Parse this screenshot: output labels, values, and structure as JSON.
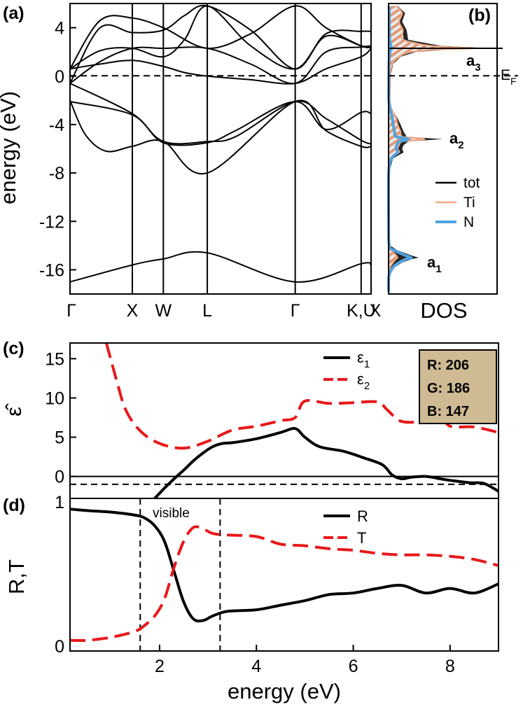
{
  "chart_data": [
    {
      "panel": "(a)",
      "type": "line",
      "title": "",
      "ylabel": "energy (eV)",
      "ylim": [
        -18,
        6
      ],
      "yticks": [
        4,
        0,
        -4,
        -8,
        -12,
        -16
      ],
      "k_path": [
        "Γ",
        "X",
        "W",
        "L",
        "Γ",
        "K,U",
        "X"
      ],
      "k_positions": [
        0,
        0.207,
        0.31,
        0.456,
        0.748,
        0.967,
        1.0
      ],
      "fermi_level": 0,
      "description_series": [
        {
          "name": "band1",
          "x": [
            0,
            0.207,
            0.31,
            0.456,
            0.748,
            0.967,
            1.0
          ],
          "y": [
            -17.0,
            -15.6,
            -15.1,
            -14.6,
            -17.0,
            -15.5,
            -15.6
          ]
        },
        {
          "name": "band2",
          "x": [
            0,
            0.05,
            0.12,
            0.207,
            0.31,
            0.456,
            0.748,
            0.85,
            0.967,
            1.0
          ],
          "y": [
            -2.0,
            -4.8,
            -6.2,
            -5.8,
            -5.4,
            -8.0,
            -2.1,
            -4.5,
            -5.8,
            -5.8
          ]
        },
        {
          "name": "band3",
          "x": [
            0,
            0.207,
            0.31,
            0.456,
            0.55,
            0.748,
            0.85,
            0.967,
            1.0
          ],
          "y": [
            -0.6,
            -3.1,
            -5.4,
            -5.4,
            -5.0,
            -2.1,
            -3.5,
            -5.3,
            -5.6
          ]
        },
        {
          "name": "band4",
          "x": [
            0,
            0.207,
            0.31,
            0.456,
            0.55,
            0.748,
            0.85,
            0.967,
            1.0
          ],
          "y": [
            -2.1,
            -3.2,
            -5.5,
            -5.5,
            -4.5,
            -2.1,
            -4.4,
            -3.0,
            -3.1
          ]
        },
        {
          "name": "band5",
          "x": [
            0,
            0.1,
            0.207,
            0.31,
            0.38,
            0.456,
            0.6,
            0.748,
            0.85,
            0.967,
            1.0
          ],
          "y": [
            0.6,
            1.0,
            1.3,
            0.8,
            0.3,
            0.0,
            -0.3,
            -0.6,
            0.6,
            1.6,
            2.3
          ]
        },
        {
          "name": "band6",
          "x": [
            0,
            0.1,
            0.207,
            0.31,
            0.456,
            0.6,
            0.748,
            0.85,
            0.967,
            1.0
          ],
          "y": [
            -0.6,
            1.2,
            2.3,
            2.3,
            2.3,
            1.0,
            -0.6,
            2.0,
            2.4,
            2.5
          ]
        },
        {
          "name": "band7",
          "x": [
            0,
            0.1,
            0.207,
            0.31,
            0.38,
            0.456,
            0.6,
            0.748,
            0.85,
            0.967,
            1.0
          ],
          "y": [
            0.6,
            2.1,
            2.3,
            1.6,
            3.0,
            5.8,
            2.5,
            0.6,
            3.3,
            2.5,
            2.4
          ]
        },
        {
          "name": "band8",
          "x": [
            0,
            0.1,
            0.207,
            0.31,
            0.38,
            0.456,
            0.6,
            0.748,
            0.85,
            0.967,
            1.0
          ],
          "y": [
            -0.6,
            4.0,
            3.6,
            3.8,
            5.0,
            5.8,
            3.8,
            0.6,
            3.5,
            3.7,
            3.7
          ]
        },
        {
          "name": "band9",
          "x": [
            0,
            0.1,
            0.207,
            0.31,
            0.456,
            0.6,
            0.748,
            0.85,
            0.967,
            1.0
          ],
          "y": [
            0.6,
            4.6,
            4.8,
            4.0,
            2.3,
            3.5,
            5.8,
            4.0,
            2.5,
            2.4
          ]
        }
      ]
    },
    {
      "panel": "(b)",
      "type": "area",
      "xlabel": "DOS",
      "ylim": [
        -18,
        6
      ],
      "fermi_label": "E",
      "fermi_sub": "F",
      "peak_labels": [
        {
          "text": "a",
          "sub": "3",
          "energy": 2.3
        },
        {
          "text": "a",
          "sub": "2",
          "energy": -5.2
        },
        {
          "text": "a",
          "sub": "1",
          "energy": -15.0
        }
      ],
      "legend": [
        "tot",
        "Ti",
        "N"
      ],
      "colors": {
        "tot": "#000000",
        "Ti": "#f4a882",
        "N": "#4fa3e0"
      },
      "energy": [
        -17.8,
        -16.5,
        -15.8,
        -15.4,
        -15.1,
        -15.0,
        -14.8,
        -14.4,
        -14.0,
        -12,
        -8,
        -6.8,
        -6.3,
        -6.0,
        -5.7,
        -5.4,
        -5.2,
        -5.0,
        -4.6,
        -4.0,
        -3.5,
        -3.0,
        -2.6,
        -2.0,
        -1.0,
        0.0,
        1.0,
        1.6,
        2.0,
        2.2,
        2.3,
        2.5,
        3.0,
        3.8,
        4.5,
        5.2,
        5.8
      ],
      "tot": [
        0.02,
        0.05,
        0.4,
        0.9,
        1.6,
        2.0,
        1.5,
        0.6,
        0.1,
        0.01,
        0.02,
        0.3,
        1.0,
        0.9,
        1.0,
        1.3,
        3.6,
        1.2,
        1.0,
        0.8,
        0.6,
        0.35,
        0.2,
        0.1,
        0.12,
        0.15,
        0.3,
        0.8,
        1.8,
        4.0,
        6.8,
        3.5,
        1.3,
        1.2,
        0.9,
        1.1,
        0.6
      ],
      "Ti": [
        0.01,
        0.02,
        0.1,
        0.3,
        0.5,
        0.6,
        0.5,
        0.2,
        0.05,
        0.01,
        0.01,
        0.2,
        0.7,
        0.6,
        0.7,
        0.9,
        2.4,
        0.9,
        0.8,
        0.6,
        0.5,
        0.3,
        0.15,
        0.08,
        0.1,
        0.12,
        0.25,
        0.7,
        1.5,
        3.2,
        5.5,
        2.8,
        1.0,
        0.95,
        0.7,
        0.9,
        0.5
      ],
      "N": [
        0.01,
        0.03,
        0.3,
        0.7,
        1.2,
        1.5,
        1.1,
        0.4,
        0.05,
        0.005,
        0.01,
        0.2,
        0.6,
        0.5,
        0.55,
        0.7,
        1.3,
        0.5,
        0.4,
        0.3,
        0.25,
        0.15,
        0.08,
        0.02,
        0.02,
        0.02,
        0.03,
        0.06,
        0.1,
        0.15,
        0.25,
        0.15,
        0.08,
        0.06,
        0.05,
        0.05,
        0.03
      ],
      "xmax": 7.2
    },
    {
      "panel": "(c)",
      "type": "line",
      "ylabel": "ε̂",
      "xlim": [
        0.15,
        9.0
      ],
      "ylim": [
        -2.8,
        17
      ],
      "yticks": [
        15,
        10,
        5,
        0
      ],
      "hline_solid": 0,
      "hline_dashed": -1,
      "color_box": [
        "R: 206",
        "G: 186",
        "B: 147"
      ],
      "color_box_hex": "#ceba93",
      "series": [
        {
          "name": "ε",
          "sub": "1",
          "style": "solid",
          "color": "#000000",
          "x": [
            1.9,
            2.1,
            2.3,
            2.5,
            2.7,
            2.9,
            3.1,
            3.3,
            3.5,
            4.0,
            4.5,
            4.8,
            5.0,
            5.3,
            5.8,
            6.2,
            6.6,
            6.8,
            7.0,
            7.2,
            7.5,
            7.8,
            8.0,
            8.4,
            8.7,
            9.0
          ],
          "y": [
            -2.8,
            -1.5,
            -0.3,
            0.8,
            2.0,
            3.0,
            3.8,
            4.2,
            4.3,
            4.8,
            5.6,
            6.1,
            5.0,
            3.8,
            3.2,
            2.4,
            1.5,
            0.2,
            -0.3,
            -0.1,
            0.0,
            -0.3,
            -0.5,
            -0.8,
            -0.9,
            -1.9
          ]
        },
        {
          "name": "ε",
          "sub": "2",
          "style": "dashed",
          "color": "#e8181a",
          "x": [
            0.9,
            1.1,
            1.3,
            1.6,
            2.0,
            2.5,
            3.0,
            3.5,
            4.0,
            4.5,
            4.8,
            5.0,
            5.5,
            6.0,
            6.5,
            6.7,
            7.0,
            7.5,
            7.8,
            8.0,
            8.5,
            9.0
          ],
          "y": [
            17,
            12.5,
            8.5,
            5.8,
            4.2,
            3.6,
            4.5,
            5.9,
            6.4,
            7.1,
            7.5,
            9.6,
            9.3,
            9.4,
            9.5,
            8.5,
            7.0,
            7.1,
            7.8,
            6.4,
            6.3,
            5.6
          ]
        }
      ]
    },
    {
      "panel": "(d)",
      "type": "line",
      "ylabel": "R,T",
      "xlabel": "energy (eV)",
      "xlim": [
        0.15,
        9.0
      ],
      "ylim": [
        0,
        1
      ],
      "yticks": [
        1,
        0
      ],
      "xticks": [
        2,
        4,
        6,
        8
      ],
      "visible_band": [
        1.6,
        3.25
      ],
      "visible_label": "visible",
      "series": [
        {
          "name": "R",
          "style": "solid",
          "color": "#000000",
          "x": [
            0.15,
            0.5,
            1.0,
            1.5,
            1.7,
            1.9,
            2.1,
            2.3,
            2.5,
            2.7,
            2.9,
            3.1,
            3.4,
            4.0,
            4.5,
            5.0,
            5.5,
            6.0,
            6.5,
            7.0,
            7.5,
            8.0,
            8.5,
            9.0
          ],
          "y": [
            0.93,
            0.92,
            0.91,
            0.89,
            0.87,
            0.82,
            0.72,
            0.52,
            0.32,
            0.21,
            0.2,
            0.23,
            0.26,
            0.27,
            0.3,
            0.33,
            0.37,
            0.38,
            0.41,
            0.43,
            0.38,
            0.41,
            0.38,
            0.44
          ]
        },
        {
          "name": "T",
          "style": "dashed",
          "color": "#e8181a",
          "x": [
            0.15,
            0.5,
            1.0,
            1.5,
            1.7,
            1.9,
            2.1,
            2.3,
            2.5,
            2.7,
            2.9,
            3.1,
            3.4,
            4.0,
            4.5,
            5.0,
            5.5,
            6.0,
            6.5,
            7.0,
            7.5,
            8.0,
            8.5,
            9.0
          ],
          "y": [
            0.07,
            0.07,
            0.09,
            0.13,
            0.17,
            0.23,
            0.34,
            0.55,
            0.72,
            0.81,
            0.8,
            0.77,
            0.76,
            0.75,
            0.7,
            0.69,
            0.67,
            0.66,
            0.64,
            0.63,
            0.63,
            0.62,
            0.6,
            0.56
          ]
        }
      ]
    }
  ]
}
